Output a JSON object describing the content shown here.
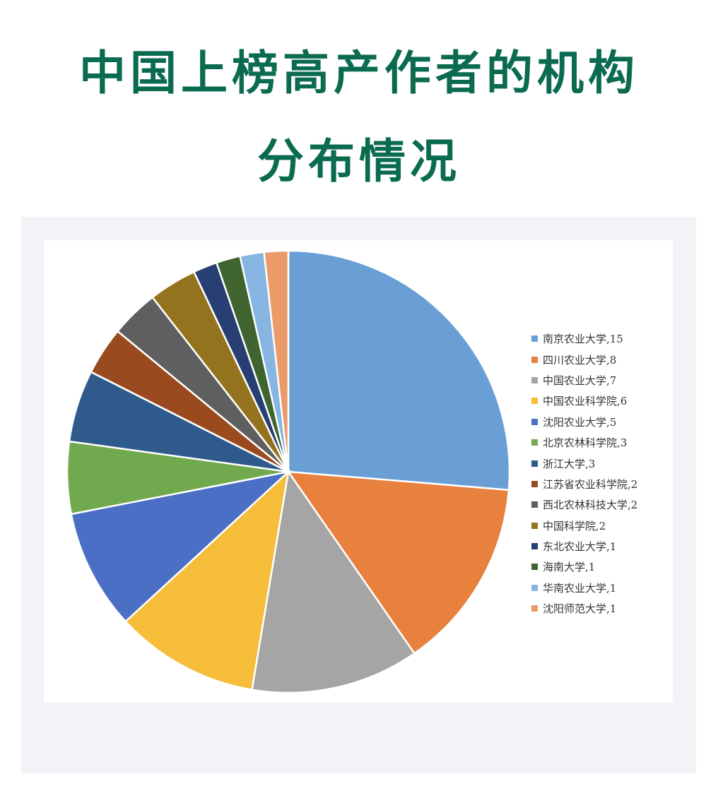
{
  "title_line1": "中国上榜高产作者的机构",
  "title_line2": "分布情况",
  "chart_data": {
    "type": "pie",
    "start": "top",
    "direction": "clockwise",
    "legend_position": "right",
    "categories": [
      "南京农业大学",
      "四川农业大学",
      "中国农业大学",
      "中国农业科学院",
      "沈阳农业大学",
      "北京农林科学院",
      "浙江大学",
      "江苏省农业科学院",
      "西北农林科技大学",
      "中国科学院",
      "东北农业大学",
      "海南大学",
      "华南农业大学",
      "沈阳师范大学"
    ],
    "values": [
      15,
      8,
      7,
      6,
      5,
      3,
      3,
      2,
      2,
      2,
      1,
      1,
      1,
      1
    ],
    "legend_labels": [
      "南京农业大学,15",
      "四川农业大学,8",
      "中国农业大学,7",
      "中国农业科学院,6",
      "沈阳农业大学,5",
      "北京农林科学院,3",
      "浙江大学,3",
      "江苏省农业科学院,2",
      "西北农林科技大学,2",
      "中国科学院,2",
      "东北农业大学,1",
      "海南大学,1",
      "华南农业大学,1",
      "沈阳师范大学,1"
    ],
    "colors": [
      "#6a9fd6",
      "#e8803e",
      "#a5a5a5",
      "#f6bd3a",
      "#4a6fc4",
      "#71a94e",
      "#2f5a8c",
      "#9a4a1f",
      "#5f5f5f",
      "#93731d",
      "#283f73",
      "#3f6430",
      "#86b5e2",
      "#eb9a6a"
    ]
  }
}
